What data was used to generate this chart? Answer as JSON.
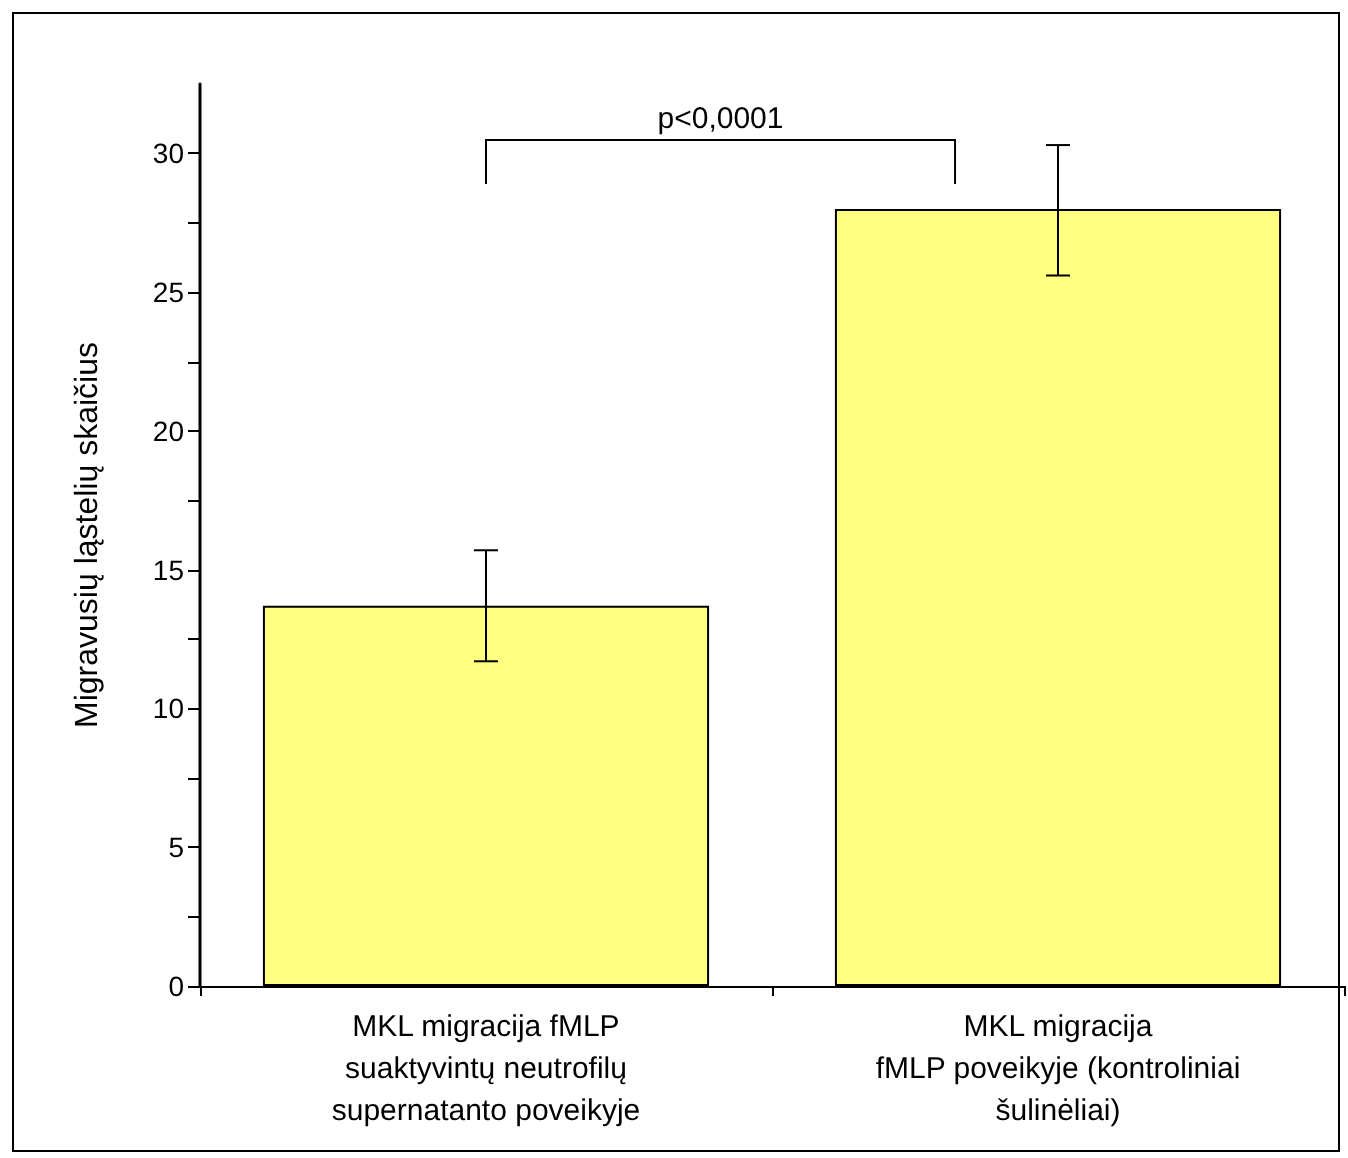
{
  "chart_data": {
    "type": "bar",
    "ylabel": "Migravusių ląstelių skaičius",
    "categories": [
      "MKL migracija fMLP\nsuaktyvintų neutrofilų\nsupernatanto poveikyje",
      "MKL migracija\nfMLP poveikyje (kontroliniai\nšulinėliai)"
    ],
    "values": [
      13.7,
      28.0
    ],
    "errors": [
      2,
      [
        25.6,
        30.3
      ]
    ],
    "color": "#ffff80",
    "ylim": [
      0,
      32.5
    ],
    "yticks": [
      0,
      {
        "value": 2.5,
        "label": null
      },
      5,
      {
        "value": 7.5,
        "label": null
      },
      10,
      {
        "value": 12.5,
        "label": null
      },
      15,
      {
        "value": 17.5,
        "label": null
      },
      20,
      {
        "value": 22.5,
        "label": null
      },
      25,
      {
        "value": 27.5,
        "label": null
      },
      30
    ],
    "annotations": [
      "p<0,0001"
    ]
  }
}
